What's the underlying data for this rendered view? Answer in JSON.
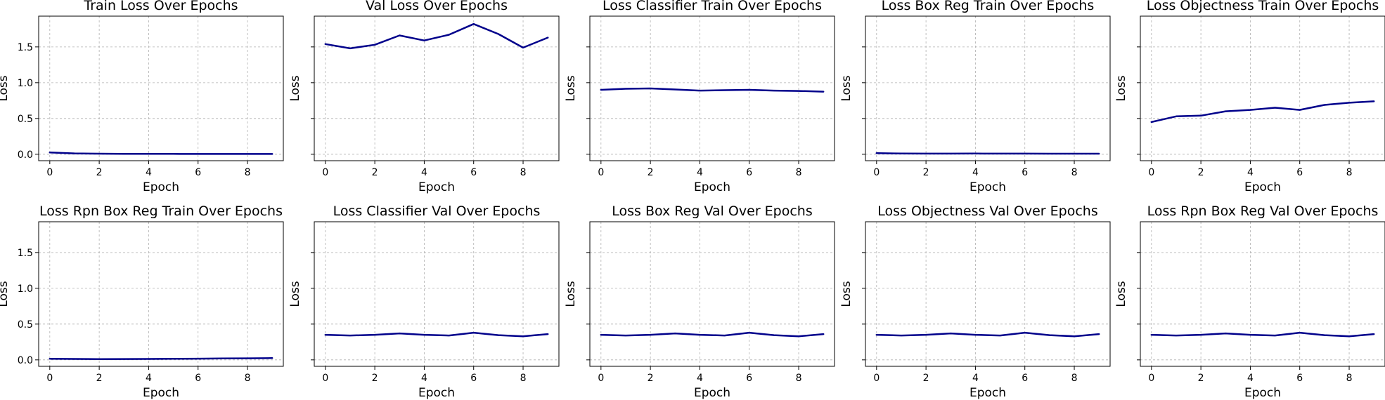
{
  "figure": {
    "line_color": "#00008b",
    "grid": true
  },
  "chart_data": [
    {
      "type": "line",
      "title": "Train Loss Over Epochs",
      "xlabel": "Epoch",
      "ylabel": "Loss",
      "xlim": [
        -0.45,
        9.45
      ],
      "ylim": [
        -0.09,
        1.93
      ],
      "xticks": [
        0,
        2,
        4,
        6,
        8
      ],
      "yticks": [
        0.0,
        0.5,
        1.0,
        1.5
      ],
      "show_ytick_labels": true,
      "x": [
        0,
        1,
        2,
        3,
        4,
        5,
        6,
        7,
        8,
        9
      ],
      "series": [
        {
          "values": [
            0.025,
            0.012,
            0.008,
            0.006,
            0.005,
            0.005,
            0.004,
            0.004,
            0.004,
            0.004
          ]
        }
      ]
    },
    {
      "type": "line",
      "title": "Val Loss Over Epochs",
      "xlabel": "Epoch",
      "ylabel": "Loss",
      "xlim": [
        -0.45,
        9.45
      ],
      "ylim": [
        -0.09,
        1.93
      ],
      "xticks": [
        0,
        2,
        4,
        6,
        8
      ],
      "yticks": [
        0.0,
        0.5,
        1.0,
        1.5
      ],
      "show_ytick_labels": false,
      "x": [
        0,
        1,
        2,
        3,
        4,
        5,
        6,
        7,
        8,
        9
      ],
      "series": [
        {
          "values": [
            1.54,
            1.48,
            1.53,
            1.66,
            1.59,
            1.67,
            1.82,
            1.68,
            1.49,
            1.63
          ]
        }
      ]
    },
    {
      "type": "line",
      "title": "Loss Classifier Train Over Epochs",
      "xlabel": "Epoch",
      "ylabel": "Loss",
      "xlim": [
        -0.45,
        9.45
      ],
      "ylim": [
        -0.09,
        1.93
      ],
      "xticks": [
        0,
        2,
        4,
        6,
        8
      ],
      "yticks": [
        0.0,
        0.5,
        1.0,
        1.5
      ],
      "show_ytick_labels": false,
      "x": [
        0,
        1,
        2,
        3,
        4,
        5,
        6,
        7,
        8,
        9
      ],
      "series": [
        {
          "values": [
            0.9,
            0.915,
            0.92,
            0.905,
            0.89,
            0.895,
            0.9,
            0.89,
            0.885,
            0.875
          ]
        }
      ]
    },
    {
      "type": "line",
      "title": "Loss Box Reg Train Over Epochs",
      "xlabel": "Epoch",
      "ylabel": "Loss",
      "xlim": [
        -0.45,
        9.45
      ],
      "ylim": [
        -0.09,
        1.93
      ],
      "xticks": [
        0,
        2,
        4,
        6,
        8
      ],
      "yticks": [
        0.0,
        0.5,
        1.0,
        1.5
      ],
      "show_ytick_labels": false,
      "x": [
        0,
        1,
        2,
        3,
        4,
        5,
        6,
        7,
        8,
        9
      ],
      "series": [
        {
          "values": [
            0.015,
            0.01,
            0.009,
            0.009,
            0.01,
            0.009,
            0.009,
            0.008,
            0.008,
            0.008
          ]
        }
      ]
    },
    {
      "type": "line",
      "title": "Loss Objectness Train Over Epochs",
      "xlabel": "Epoch",
      "ylabel": "Loss",
      "xlim": [
        -0.45,
        9.45
      ],
      "ylim": [
        -0.09,
        1.93
      ],
      "xticks": [
        0,
        2,
        4,
        6,
        8
      ],
      "yticks": [
        0.0,
        0.5,
        1.0,
        1.5
      ],
      "show_ytick_labels": false,
      "x": [
        0,
        1,
        2,
        3,
        4,
        5,
        6,
        7,
        8,
        9
      ],
      "series": [
        {
          "values": [
            0.45,
            0.53,
            0.54,
            0.6,
            0.62,
            0.65,
            0.62,
            0.69,
            0.72,
            0.74
          ]
        }
      ]
    },
    {
      "type": "line",
      "title": "Loss Rpn Box Reg Train Over Epochs",
      "xlabel": "Epoch",
      "ylabel": "Loss",
      "xlim": [
        -0.45,
        9.45
      ],
      "ylim": [
        -0.09,
        1.93
      ],
      "xticks": [
        0,
        2,
        4,
        6,
        8
      ],
      "yticks": [
        0.0,
        0.5,
        1.0,
        1.5
      ],
      "show_ytick_labels": true,
      "x": [
        0,
        1,
        2,
        3,
        4,
        5,
        6,
        7,
        8,
        9
      ],
      "series": [
        {
          "values": [
            0.015,
            0.013,
            0.011,
            0.012,
            0.013,
            0.015,
            0.017,
            0.02,
            0.022,
            0.025
          ]
        }
      ]
    },
    {
      "type": "line",
      "title": "Loss Classifier Val Over Epochs",
      "xlabel": "Epoch",
      "ylabel": "Loss",
      "xlim": [
        -0.45,
        9.45
      ],
      "ylim": [
        -0.09,
        1.93
      ],
      "xticks": [
        0,
        2,
        4,
        6,
        8
      ],
      "yticks": [
        0.0,
        0.5,
        1.0,
        1.5
      ],
      "show_ytick_labels": false,
      "x": [
        0,
        1,
        2,
        3,
        4,
        5,
        6,
        7,
        8,
        9
      ],
      "series": [
        {
          "values": [
            0.35,
            0.34,
            0.35,
            0.37,
            0.35,
            0.34,
            0.38,
            0.345,
            0.33,
            0.36
          ]
        }
      ]
    },
    {
      "type": "line",
      "title": "Loss Box Reg Val Over Epochs",
      "xlabel": "Epoch",
      "ylabel": "Loss",
      "xlim": [
        -0.45,
        9.45
      ],
      "ylim": [
        -0.09,
        1.93
      ],
      "xticks": [
        0,
        2,
        4,
        6,
        8
      ],
      "yticks": [
        0.0,
        0.5,
        1.0,
        1.5
      ],
      "show_ytick_labels": false,
      "x": [
        0,
        1,
        2,
        3,
        4,
        5,
        6,
        7,
        8,
        9
      ],
      "series": [
        {
          "values": [
            0.35,
            0.34,
            0.35,
            0.37,
            0.35,
            0.34,
            0.38,
            0.345,
            0.33,
            0.36
          ]
        }
      ]
    },
    {
      "type": "line",
      "title": "Loss Objectness Val Over Epochs",
      "xlabel": "Epoch",
      "ylabel": "Loss",
      "xlim": [
        -0.45,
        9.45
      ],
      "ylim": [
        -0.09,
        1.93
      ],
      "xticks": [
        0,
        2,
        4,
        6,
        8
      ],
      "yticks": [
        0.0,
        0.5,
        1.0,
        1.5
      ],
      "show_ytick_labels": false,
      "x": [
        0,
        1,
        2,
        3,
        4,
        5,
        6,
        7,
        8,
        9
      ],
      "series": [
        {
          "values": [
            0.35,
            0.34,
            0.35,
            0.37,
            0.35,
            0.34,
            0.38,
            0.345,
            0.33,
            0.36
          ]
        }
      ]
    },
    {
      "type": "line",
      "title": "Loss Rpn Box Reg Val Over Epochs",
      "xlabel": "Epoch",
      "ylabel": "Loss",
      "xlim": [
        -0.45,
        9.45
      ],
      "ylim": [
        -0.09,
        1.93
      ],
      "xticks": [
        0,
        2,
        4,
        6,
        8
      ],
      "yticks": [
        0.0,
        0.5,
        1.0,
        1.5
      ],
      "show_ytick_labels": false,
      "x": [
        0,
        1,
        2,
        3,
        4,
        5,
        6,
        7,
        8,
        9
      ],
      "series": [
        {
          "values": [
            0.35,
            0.34,
            0.35,
            0.37,
            0.35,
            0.34,
            0.38,
            0.345,
            0.33,
            0.36
          ]
        }
      ]
    }
  ]
}
